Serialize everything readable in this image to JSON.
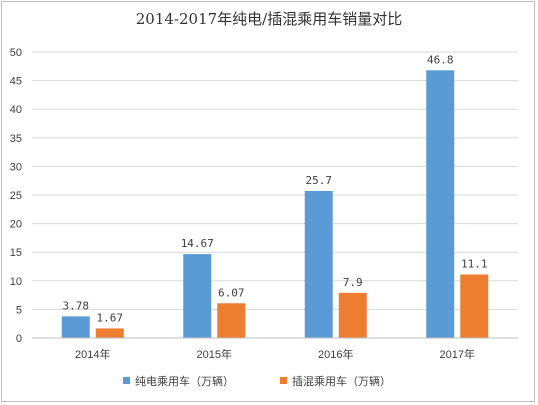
{
  "chart_data": {
    "type": "bar",
    "title": "2014-2017年纯电/插混乘用车销量对比",
    "categories": [
      "2014年",
      "2015年",
      "2016年",
      "2017年"
    ],
    "series": [
      {
        "name": "纯电乘用车（万辆）",
        "color": "#5b9bd5",
        "values": [
          3.78,
          14.67,
          25.7,
          46.8
        ],
        "labels": [
          "3.78",
          "14.67",
          "25.7",
          "46.8"
        ]
      },
      {
        "name": "插混乘用车（万辆）",
        "color": "#ed7d31",
        "values": [
          1.67,
          6.07,
          7.9,
          11.1
        ],
        "labels": [
          "1.67",
          "6.07",
          "7.9",
          "11.1"
        ]
      }
    ],
    "ylim": [
      0,
      50
    ],
    "yticks": [
      0,
      5,
      10,
      15,
      20,
      25,
      30,
      35,
      40,
      45,
      50
    ],
    "grid": true,
    "legend_position": "bottom"
  }
}
